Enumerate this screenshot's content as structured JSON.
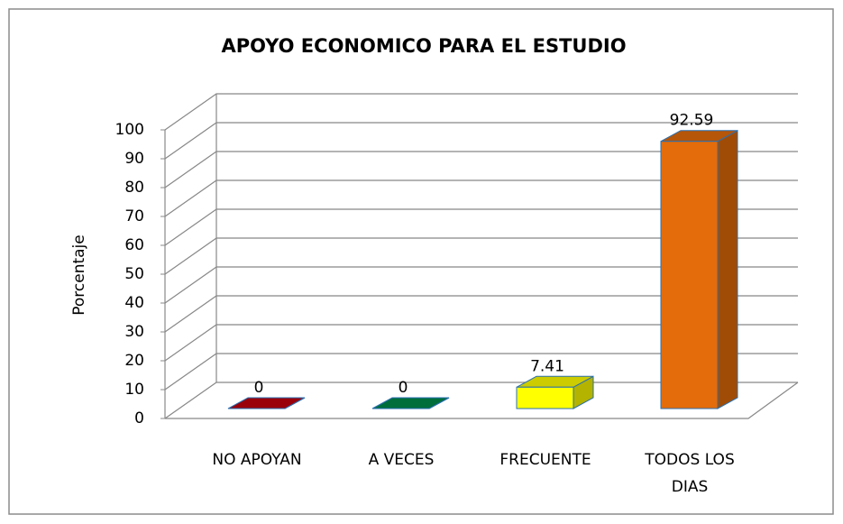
{
  "chart_data": {
    "type": "bar",
    "title": "APOYO ECONOMICO PARA EL ESTUDIO",
    "ylabel": "Porcentaje",
    "categories": [
      "NO APOYAN",
      "A VECES",
      "FRECUENTE",
      "TODOS LOS DIAS"
    ],
    "values": [
      0,
      0,
      7.41,
      92.59
    ],
    "colors": [
      "#c0000c",
      "#008a4a",
      "#ffff00",
      "#e46c0a"
    ],
    "ylim": [
      0,
      100
    ],
    "yticks": [
      0,
      10,
      20,
      30,
      40,
      50,
      60,
      70,
      80,
      90,
      100
    ],
    "grid": true
  }
}
